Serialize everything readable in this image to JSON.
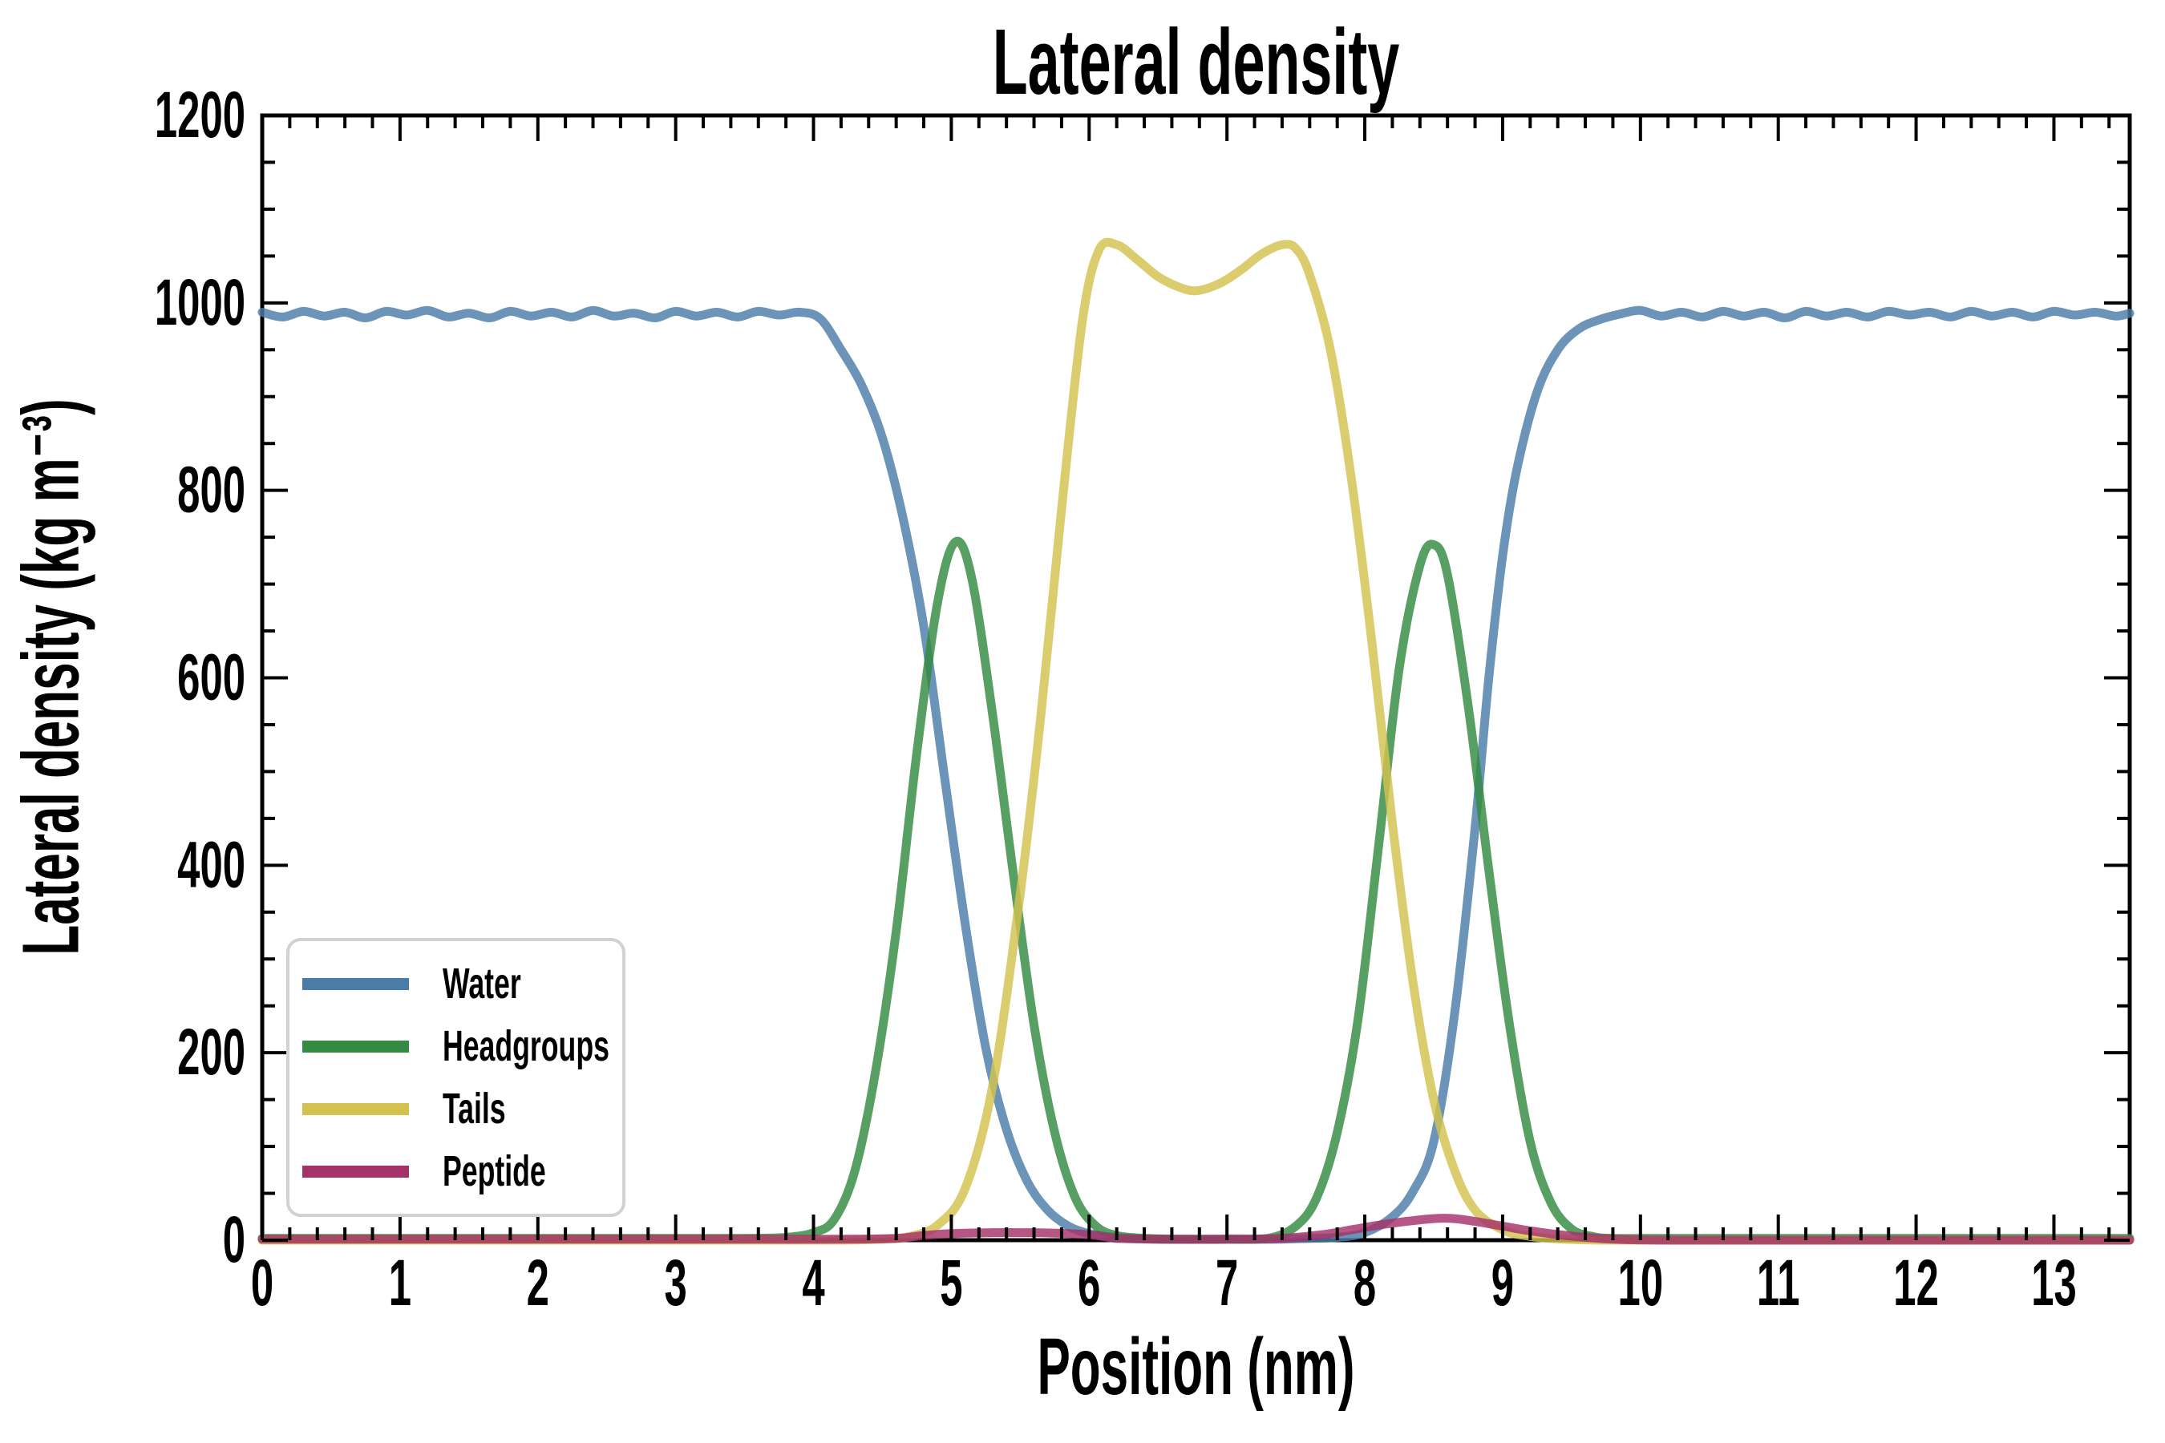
{
  "chart_data": {
    "type": "line",
    "title": "Lateral density",
    "xlabel": "Position (nm)",
    "ylabel": "Lateral density (kg m⁻³)",
    "xlim": [
      0,
      13.55
    ],
    "ylim": [
      0,
      1200
    ],
    "x_ticks": [
      0,
      1,
      2,
      3,
      4,
      5,
      6,
      7,
      8,
      9,
      10,
      11,
      12,
      13
    ],
    "x_minor_step": 0.2,
    "y_ticks": [
      0,
      200,
      400,
      600,
      800,
      1000,
      1200
    ],
    "y_minor_step": 50,
    "grid": false,
    "legend_position": "lower left",
    "background_color": "#ffffff",
    "axis_color": "#000000",
    "line_width": 11,
    "line_opacity": 0.82,
    "series": [
      {
        "name": "Water",
        "color": "#4A7CA8",
        "points": [
          [
            0,
            990
          ],
          [
            0.15,
            985
          ],
          [
            0.3,
            991
          ],
          [
            0.45,
            986
          ],
          [
            0.6,
            990
          ],
          [
            0.75,
            984
          ],
          [
            0.9,
            991
          ],
          [
            1.05,
            987
          ],
          [
            1.2,
            992
          ],
          [
            1.35,
            985
          ],
          [
            1.5,
            989
          ],
          [
            1.65,
            984
          ],
          [
            1.8,
            991
          ],
          [
            1.95,
            986
          ],
          [
            2.1,
            990
          ],
          [
            2.25,
            985
          ],
          [
            2.4,
            992
          ],
          [
            2.55,
            986
          ],
          [
            2.7,
            989
          ],
          [
            2.85,
            984
          ],
          [
            3.0,
            991
          ],
          [
            3.15,
            986
          ],
          [
            3.3,
            990
          ],
          [
            3.45,
            985
          ],
          [
            3.6,
            991
          ],
          [
            3.75,
            987
          ],
          [
            3.9,
            990
          ],
          [
            4.05,
            983
          ],
          [
            4.2,
            950
          ],
          [
            4.35,
            912
          ],
          [
            4.5,
            856
          ],
          [
            4.65,
            770
          ],
          [
            4.8,
            655
          ],
          [
            4.95,
            495
          ],
          [
            5.1,
            338
          ],
          [
            5.25,
            205
          ],
          [
            5.4,
            118
          ],
          [
            5.55,
            63
          ],
          [
            5.7,
            32
          ],
          [
            5.85,
            15
          ],
          [
            6.0,
            7
          ],
          [
            6.2,
            3
          ],
          [
            6.5,
            1
          ],
          [
            6.8,
            1
          ],
          [
            7.1,
            1
          ],
          [
            7.4,
            1
          ],
          [
            7.6,
            2
          ],
          [
            7.8,
            3
          ],
          [
            8.0,
            8
          ],
          [
            8.2,
            25
          ],
          [
            8.35,
            52
          ],
          [
            8.5,
            105
          ],
          [
            8.65,
            240
          ],
          [
            8.8,
            440
          ],
          [
            8.9,
            600
          ],
          [
            9.0,
            730
          ],
          [
            9.1,
            820
          ],
          [
            9.25,
            905
          ],
          [
            9.4,
            950
          ],
          [
            9.55,
            972
          ],
          [
            9.7,
            982
          ],
          [
            9.85,
            988
          ],
          [
            10.0,
            992
          ],
          [
            10.15,
            986
          ],
          [
            10.3,
            990
          ],
          [
            10.45,
            985
          ],
          [
            10.6,
            991
          ],
          [
            10.75,
            986
          ],
          [
            10.9,
            990
          ],
          [
            11.05,
            984
          ],
          [
            11.2,
            991
          ],
          [
            11.35,
            986
          ],
          [
            11.5,
            990
          ],
          [
            11.65,
            985
          ],
          [
            11.8,
            991
          ],
          [
            11.95,
            987
          ],
          [
            12.1,
            990
          ],
          [
            12.25,
            985
          ],
          [
            12.4,
            991
          ],
          [
            12.55,
            986
          ],
          [
            12.7,
            990
          ],
          [
            12.85,
            985
          ],
          [
            13.0,
            991
          ],
          [
            13.15,
            987
          ],
          [
            13.3,
            990
          ],
          [
            13.45,
            986
          ],
          [
            13.55,
            989
          ]
        ]
      },
      {
        "name": "Headgroups",
        "color": "#338A41",
        "points": [
          [
            0,
            2
          ],
          [
            0.5,
            2
          ],
          [
            1.0,
            2
          ],
          [
            1.5,
            2
          ],
          [
            2.0,
            2
          ],
          [
            2.5,
            2
          ],
          [
            3.0,
            2
          ],
          [
            3.5,
            2
          ],
          [
            3.8,
            3
          ],
          [
            4.0,
            8
          ],
          [
            4.15,
            22
          ],
          [
            4.3,
            74
          ],
          [
            4.45,
            180
          ],
          [
            4.6,
            330
          ],
          [
            4.75,
            520
          ],
          [
            4.9,
            680
          ],
          [
            5.03,
            745
          ],
          [
            5.15,
            705
          ],
          [
            5.3,
            560
          ],
          [
            5.45,
            390
          ],
          [
            5.6,
            230
          ],
          [
            5.75,
            115
          ],
          [
            5.9,
            45
          ],
          [
            6.05,
            15
          ],
          [
            6.2,
            5
          ],
          [
            6.4,
            2
          ],
          [
            6.7,
            1
          ],
          [
            7.0,
            1
          ],
          [
            7.3,
            2
          ],
          [
            7.5,
            15
          ],
          [
            7.65,
            45
          ],
          [
            7.8,
            115
          ],
          [
            7.95,
            235
          ],
          [
            8.1,
            420
          ],
          [
            8.25,
            610
          ],
          [
            8.4,
            720
          ],
          [
            8.5,
            742
          ],
          [
            8.6,
            710
          ],
          [
            8.75,
            570
          ],
          [
            8.9,
            395
          ],
          [
            9.05,
            230
          ],
          [
            9.2,
            105
          ],
          [
            9.35,
            40
          ],
          [
            9.5,
            12
          ],
          [
            9.65,
            4
          ],
          [
            9.8,
            2
          ],
          [
            10.2,
            2
          ],
          [
            10.7,
            2
          ],
          [
            11.2,
            2
          ],
          [
            11.7,
            2
          ],
          [
            12.2,
            2
          ],
          [
            12.7,
            2
          ],
          [
            13.2,
            2
          ],
          [
            13.55,
            2
          ]
        ]
      },
      {
        "name": "Tails",
        "color": "#D3C24E",
        "points": [
          [
            0,
            0
          ],
          [
            0.6,
            0
          ],
          [
            1.2,
            0
          ],
          [
            1.8,
            0
          ],
          [
            2.4,
            0
          ],
          [
            3.0,
            0
          ],
          [
            3.6,
            0
          ],
          [
            4.2,
            0
          ],
          [
            4.5,
            1
          ],
          [
            4.7,
            4
          ],
          [
            4.9,
            16
          ],
          [
            5.1,
            55
          ],
          [
            5.3,
            165
          ],
          [
            5.5,
            370
          ],
          [
            5.65,
            560
          ],
          [
            5.8,
            780
          ],
          [
            5.95,
            980
          ],
          [
            6.07,
            1056
          ],
          [
            6.2,
            1062
          ],
          [
            6.35,
            1046
          ],
          [
            6.5,
            1028
          ],
          [
            6.65,
            1017
          ],
          [
            6.78,
            1013
          ],
          [
            6.95,
            1021
          ],
          [
            7.1,
            1035
          ],
          [
            7.25,
            1052
          ],
          [
            7.4,
            1062
          ],
          [
            7.5,
            1058
          ],
          [
            7.6,
            1030
          ],
          [
            7.75,
            950
          ],
          [
            7.9,
            815
          ],
          [
            8.05,
            640
          ],
          [
            8.2,
            445
          ],
          [
            8.35,
            275
          ],
          [
            8.5,
            150
          ],
          [
            8.65,
            75
          ],
          [
            8.8,
            32
          ],
          [
            9.0,
            11
          ],
          [
            9.2,
            4
          ],
          [
            9.45,
            1
          ],
          [
            9.7,
            0
          ],
          [
            10.2,
            0
          ],
          [
            10.8,
            0
          ],
          [
            11.4,
            0
          ],
          [
            12.0,
            0
          ],
          [
            12.6,
            0
          ],
          [
            13.2,
            0
          ],
          [
            13.55,
            0
          ]
        ]
      },
      {
        "name": "Peptide",
        "color": "#A53169",
        "points": [
          [
            0,
            1
          ],
          [
            0.6,
            1
          ],
          [
            1.2,
            1
          ],
          [
            1.8,
            1
          ],
          [
            2.4,
            1
          ],
          [
            3.0,
            1
          ],
          [
            3.6,
            1
          ],
          [
            4.2,
            1
          ],
          [
            4.6,
            2
          ],
          [
            4.8,
            5
          ],
          [
            5.0,
            7
          ],
          [
            5.3,
            8
          ],
          [
            5.6,
            8
          ],
          [
            5.85,
            7
          ],
          [
            6.05,
            5
          ],
          [
            6.2,
            2
          ],
          [
            6.5,
            1
          ],
          [
            7.0,
            1
          ],
          [
            7.4,
            2
          ],
          [
            7.7,
            6
          ],
          [
            7.9,
            11
          ],
          [
            8.1,
            16
          ],
          [
            8.3,
            20
          ],
          [
            8.5,
            23
          ],
          [
            8.65,
            23
          ],
          [
            8.8,
            20
          ],
          [
            9.0,
            15
          ],
          [
            9.2,
            10
          ],
          [
            9.4,
            6
          ],
          [
            9.6,
            3
          ],
          [
            9.8,
            1
          ],
          [
            10.2,
            0
          ],
          [
            10.8,
            0
          ],
          [
            11.4,
            0
          ],
          [
            12.0,
            0
          ],
          [
            12.6,
            0
          ],
          [
            13.2,
            0
          ],
          [
            13.55,
            0
          ]
        ]
      }
    ]
  }
}
